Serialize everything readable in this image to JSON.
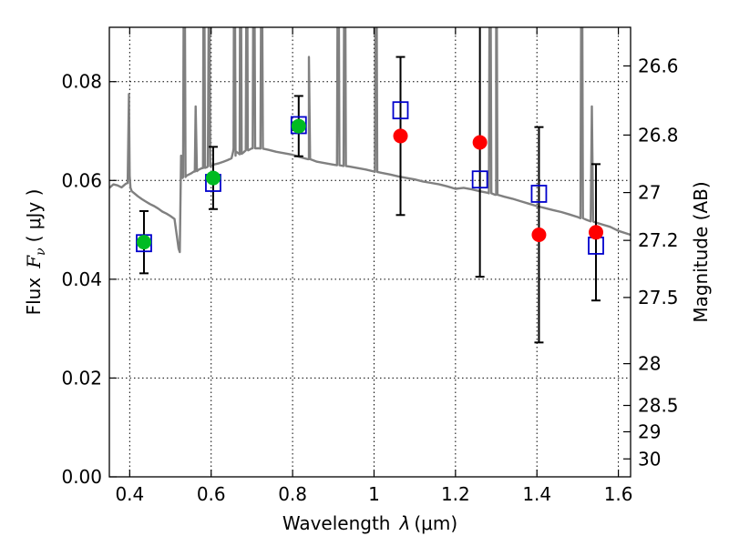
{
  "chart_data": {
    "type": "scatter",
    "xlabel": "Wavelength",
    "xlabel_symbol": "λ",
    "xlabel_unit": "(μm)",
    "ylabel": "Flux",
    "ylabel_symbol": "F",
    "ylabel_sub": "ν",
    "ylabel_unit": "( μJy )",
    "y2label": "Magnitude (AB)",
    "xlim": [
      0.35,
      1.63
    ],
    "ylim": [
      0.0,
      0.091
    ],
    "grid": true,
    "x_ticks": [
      {
        "value": 0.4,
        "label": "0.4"
      },
      {
        "value": 0.6,
        "label": "0.6"
      },
      {
        "value": 0.8,
        "label": "0.8"
      },
      {
        "value": 1.0,
        "label": "1"
      },
      {
        "value": 1.2,
        "label": "1.2"
      },
      {
        "value": 1.4,
        "label": "1.4"
      },
      {
        "value": 1.6,
        "label": "1.6"
      }
    ],
    "y_ticks": [
      {
        "value": 0.0,
        "label": "0.00"
      },
      {
        "value": 0.02,
        "label": "0.02"
      },
      {
        "value": 0.04,
        "label": "0.04"
      },
      {
        "value": 0.06,
        "label": "0.06"
      },
      {
        "value": 0.08,
        "label": "0.08"
      }
    ],
    "mag_ticks": [
      {
        "value": 26.6,
        "label": "26.6"
      },
      {
        "value": 26.8,
        "label": "26.8"
      },
      {
        "value": 27.0,
        "label": "27"
      },
      {
        "value": 27.2,
        "label": "27.2"
      },
      {
        "value": 27.5,
        "label": "27.5"
      },
      {
        "value": 28.0,
        "label": "28"
      },
      {
        "value": 28.5,
        "label": "28.5"
      },
      {
        "value": 29.0,
        "label": "29"
      },
      {
        "value": 30.0,
        "label": "30"
      }
    ],
    "spectrum": {
      "x": [
        0.35,
        0.36,
        0.37,
        0.38,
        0.39,
        0.395,
        0.398,
        0.4,
        0.402,
        0.405,
        0.41,
        0.42,
        0.43,
        0.44,
        0.45,
        0.46,
        0.47,
        0.48,
        0.49,
        0.5,
        0.51,
        0.52,
        0.523,
        0.526,
        0.53,
        0.54,
        0.55,
        0.56,
        0.57,
        0.58,
        0.59,
        0.6,
        0.61,
        0.62,
        0.63,
        0.64,
        0.65,
        0.655,
        0.66,
        0.67,
        0.68,
        0.69,
        0.7,
        0.72,
        0.74,
        0.76,
        0.78,
        0.8,
        0.82,
        0.84,
        0.86,
        0.88,
        0.9,
        0.92,
        0.94,
        0.96,
        0.98,
        1.0,
        1.02,
        1.04,
        1.06,
        1.08,
        1.1,
        1.12,
        1.14,
        1.16,
        1.18,
        1.2,
        1.22,
        1.24,
        1.26,
        1.28,
        1.3,
        1.32,
        1.34,
        1.36,
        1.38,
        1.4,
        1.42,
        1.44,
        1.46,
        1.48,
        1.5,
        1.52,
        1.54,
        1.56,
        1.58,
        1.6,
        1.63
      ],
      "y": [
        0.0585,
        0.0592,
        0.059,
        0.0586,
        0.0593,
        0.0595,
        0.0775,
        0.061,
        0.0585,
        0.0578,
        0.0575,
        0.0568,
        0.0562,
        0.0557,
        0.0552,
        0.0548,
        0.0543,
        0.0537,
        0.0533,
        0.0528,
        0.0522,
        0.0462,
        0.0455,
        0.065,
        0.0605,
        0.061,
        0.0614,
        0.0618,
        0.0622,
        0.0625,
        0.0627,
        0.063,
        0.0633,
        0.0635,
        0.0638,
        0.0641,
        0.0645,
        0.0665,
        0.065,
        0.0653,
        0.0657,
        0.0662,
        0.0665,
        0.0665,
        0.0662,
        0.0658,
        0.0655,
        0.0652,
        0.0647,
        0.0643,
        0.0638,
        0.0635,
        0.0632,
        0.063,
        0.0628,
        0.0625,
        0.0622,
        0.0618,
        0.0615,
        0.0612,
        0.0608,
        0.0605,
        0.0602,
        0.0598,
        0.0595,
        0.0592,
        0.0588,
        0.0583,
        0.0585,
        0.0582,
        0.0578,
        0.0575,
        0.0571,
        0.0567,
        0.0563,
        0.0558,
        0.0553,
        0.0548,
        0.0544,
        0.054,
        0.0536,
        0.0531,
        0.0526,
        0.0521,
        0.0516,
        0.0511,
        0.0506,
        0.0498,
        0.049
      ],
      "emission_lines": [
        {
          "x": 0.534,
          "peak": 0.13
        },
        {
          "x": 0.562,
          "peak": 0.075
        },
        {
          "x": 0.582,
          "peak": 0.13
        },
        {
          "x": 0.595,
          "peak": 0.11
        },
        {
          "x": 0.657,
          "peak": 0.13
        },
        {
          "x": 0.672,
          "peak": 0.13
        },
        {
          "x": 0.688,
          "peak": 0.13
        },
        {
          "x": 0.705,
          "peak": 0.13
        },
        {
          "x": 0.724,
          "peak": 0.12
        },
        {
          "x": 0.84,
          "peak": 0.085
        },
        {
          "x": 0.912,
          "peak": 0.13
        },
        {
          "x": 0.928,
          "peak": 0.13
        },
        {
          "x": 1.005,
          "peak": 0.13
        },
        {
          "x": 1.285,
          "peak": 0.13
        },
        {
          "x": 1.3,
          "peak": 0.13
        },
        {
          "x": 1.51,
          "peak": 0.13
        },
        {
          "x": 1.535,
          "peak": 0.075
        }
      ]
    },
    "series": [
      {
        "marker": "circle",
        "color": "#00bb22",
        "x": [
          0.435,
          0.605,
          0.815
        ],
        "y": [
          0.0475,
          0.0605,
          0.071
        ],
        "err": [
          0.0063,
          0.0063,
          0.0061
        ]
      },
      {
        "marker": "circle",
        "color": "#ff0000",
        "x": [
          1.065,
          1.26,
          1.405,
          1.545
        ],
        "y": [
          0.069,
          0.0677,
          0.049,
          0.0495
        ],
        "err": [
          0.016,
          0.0272,
          0.0218,
          0.0138
        ]
      },
      {
        "marker": "open-square",
        "color": "#0000cc",
        "x": [
          0.435,
          0.605,
          0.815,
          1.065,
          1.26,
          1.405,
          1.545
        ],
        "y": [
          0.0473,
          0.0595,
          0.0712,
          0.0742,
          0.0602,
          0.0573,
          0.0468
        ]
      }
    ]
  }
}
